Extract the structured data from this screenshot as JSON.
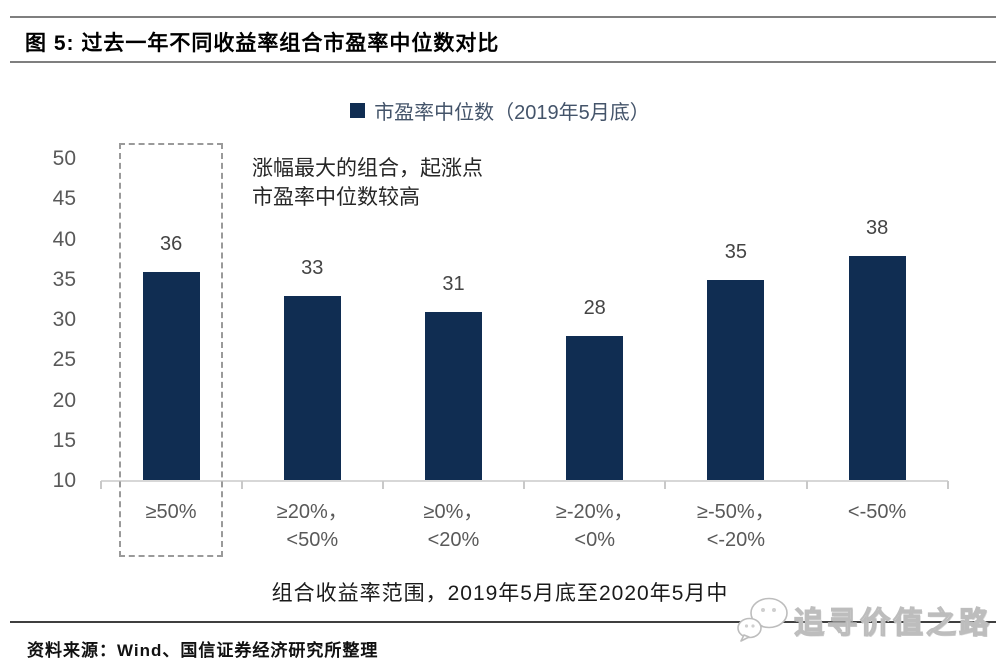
{
  "figure": {
    "title": "图 5: 过去一年不同收益率组合市盈率中位数对比",
    "source": "资料来源：Wind、国信证券经济研究所整理",
    "watermark": "追寻价值之路"
  },
  "legend": {
    "label": "市盈率中位数（2019年5月底）"
  },
  "annotation": {
    "line1": "涨幅最大的组合，起涨点",
    "line2": "市盈率中位数较高"
  },
  "chart_data": {
    "type": "bar",
    "title": "市盈率中位数（2019年5月底）",
    "categories": [
      "≥50%",
      "≥20%，\n<50%",
      "≥0%，\n<20%",
      "≥-20%，\n<0%",
      "≥-50%，\n<-20%",
      "<-50%"
    ],
    "values": [
      36,
      33,
      31,
      28,
      35,
      38
    ],
    "xlabel": "组合收益率范围，2019年5月底至2020年5月中",
    "ylabel": "",
    "ylim": [
      10,
      50
    ],
    "yticks": [
      10,
      15,
      20,
      25,
      30,
      35,
      40,
      45,
      50
    ],
    "grid": false,
    "legend_position": "top-center",
    "highlight_index": 0,
    "bar_color": "#102d52",
    "axis_label_color": "#595959",
    "value_label_color": "#444444"
  }
}
